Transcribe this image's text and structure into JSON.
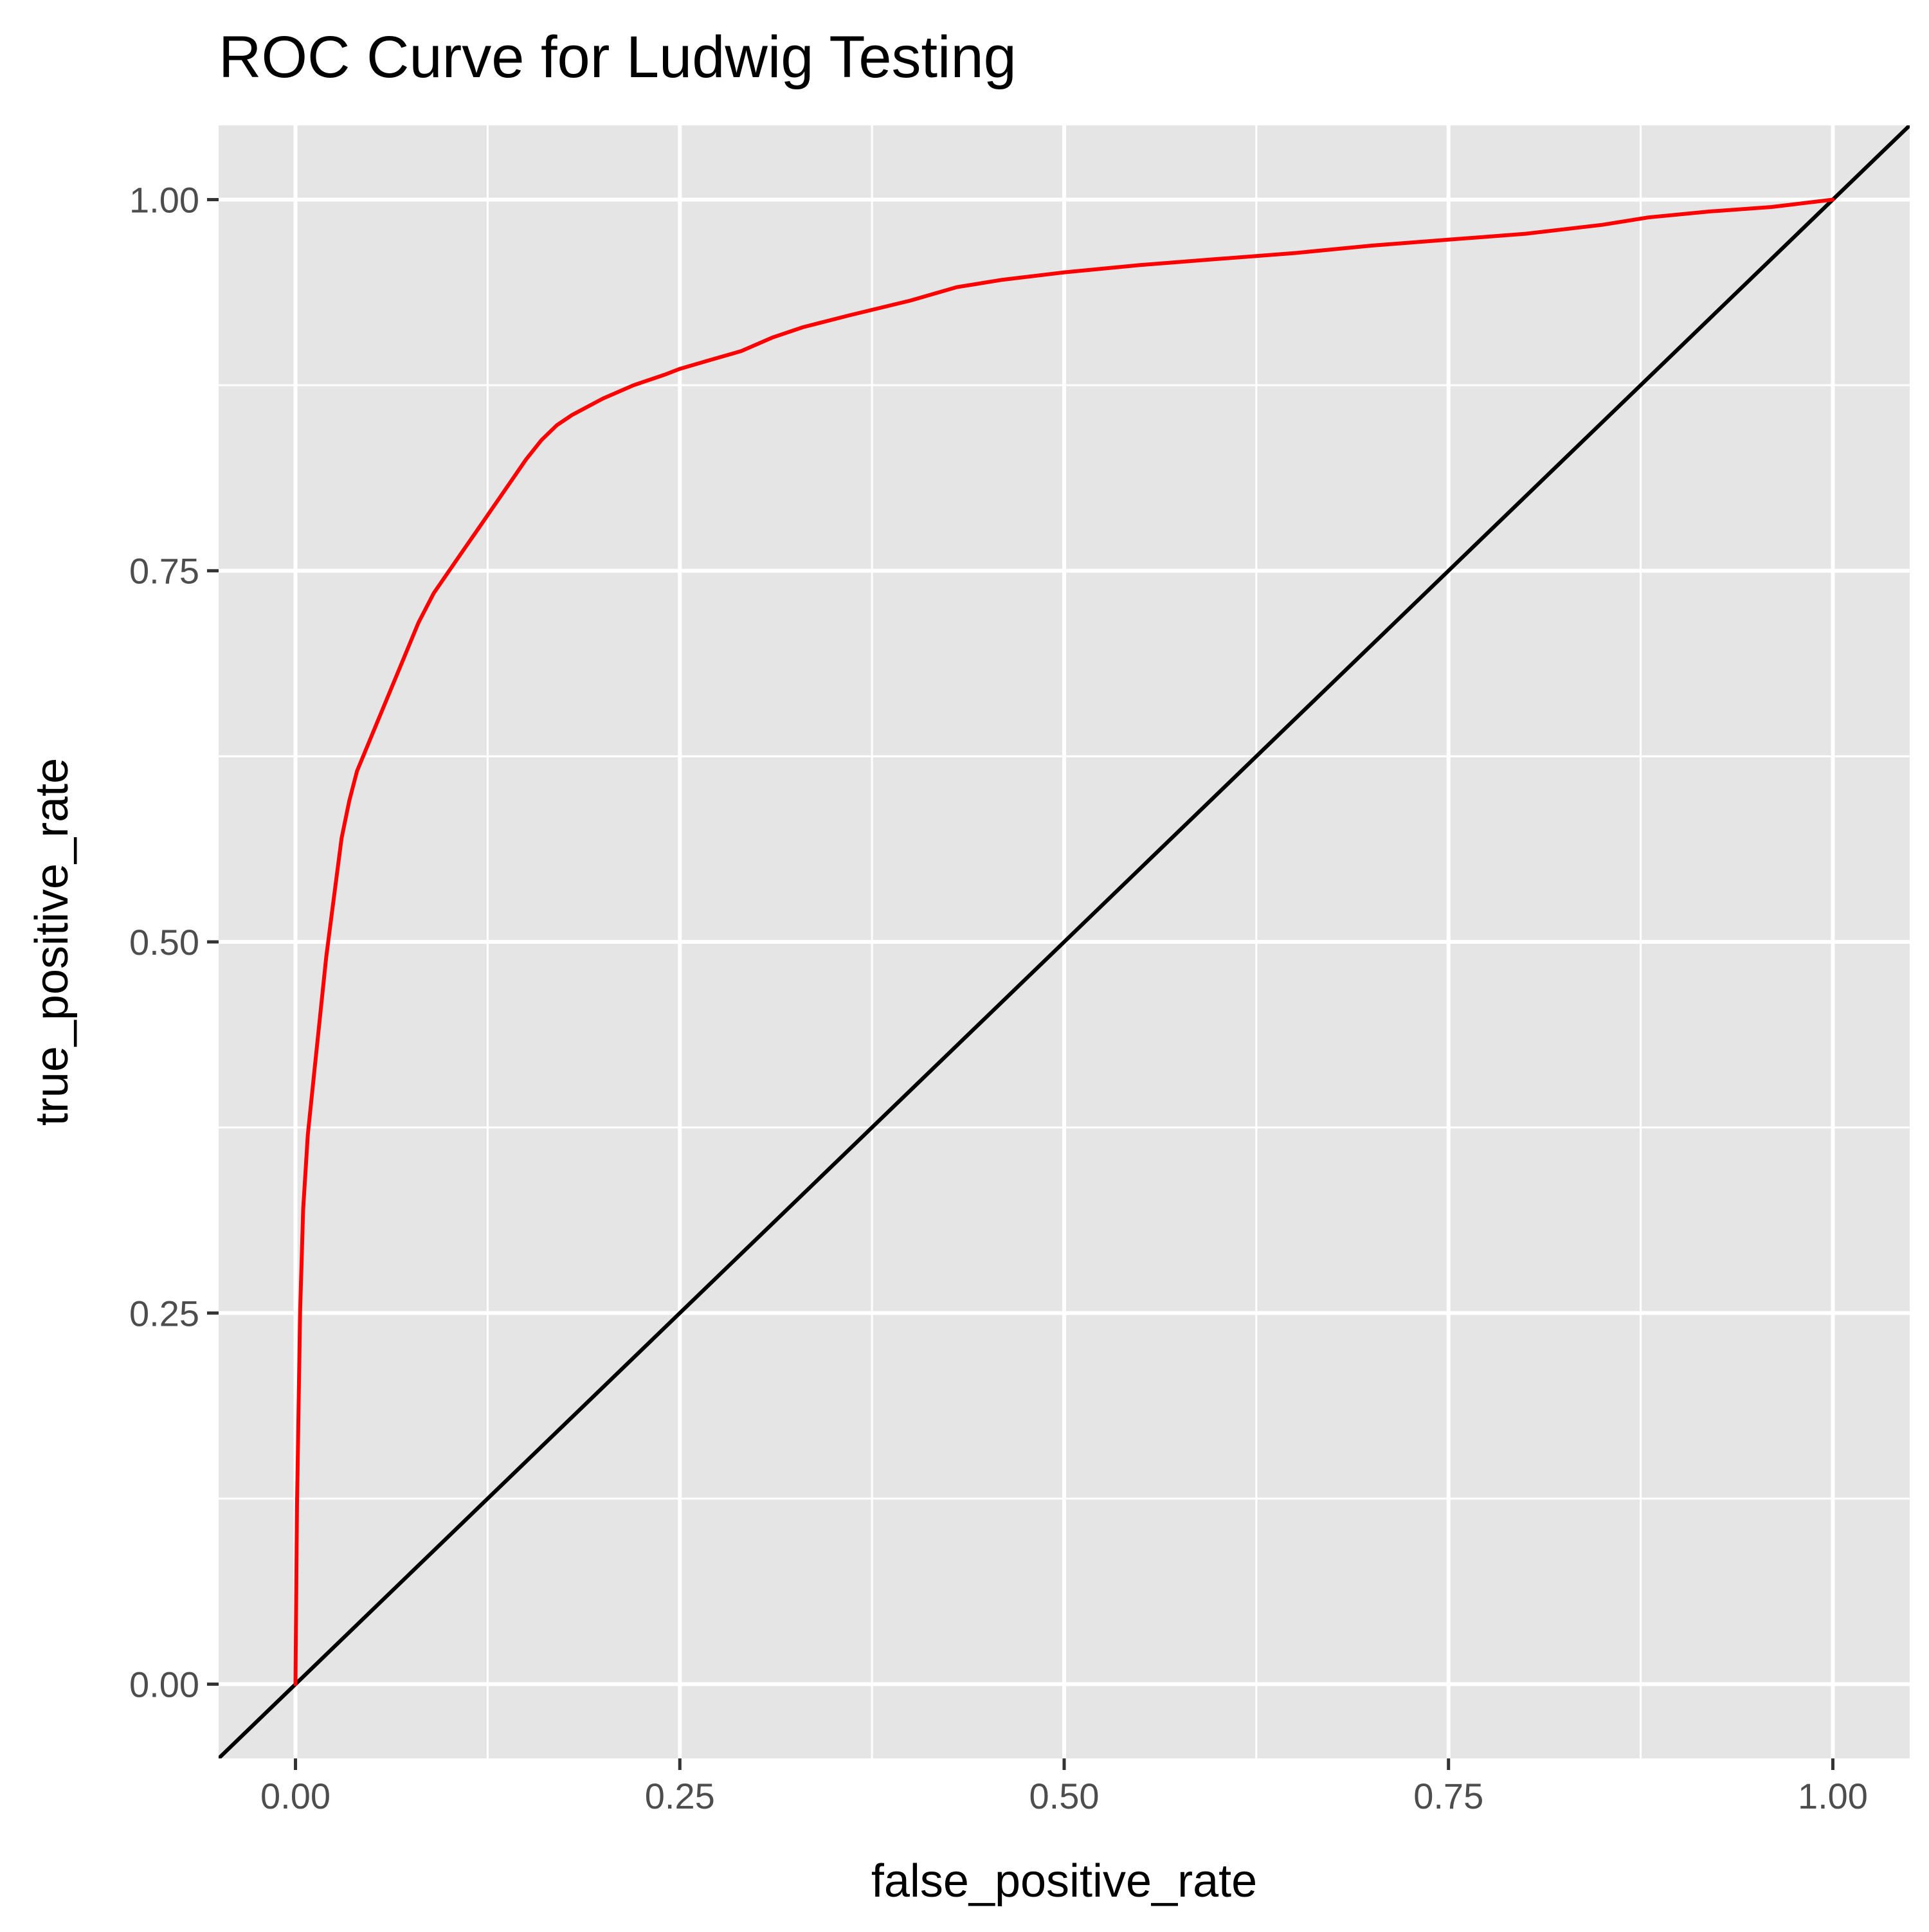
{
  "chart_data": {
    "type": "line",
    "title": "ROC Curve for Ludwig Testing",
    "xlabel": "false_positive_rate",
    "ylabel": "true_positive_rate",
    "xlim": [
      -0.05,
      1.05
    ],
    "ylim": [
      -0.05,
      1.05
    ],
    "x_ticks": [
      0,
      0.25,
      0.5,
      0.75,
      1
    ],
    "x_tick_labels": [
      "0.00",
      "0.25",
      "0.50",
      "0.75",
      "1.00"
    ],
    "y_ticks": [
      0,
      0.25,
      0.5,
      0.75,
      1
    ],
    "y_tick_labels": [
      "0.00",
      "0.25",
      "0.50",
      "0.75",
      "1.00"
    ],
    "grid": true,
    "legend": "none",
    "series": [
      {
        "color": "#ff0000",
        "x": [
          0,
          0.001,
          0.003,
          0.005,
          0.008,
          0.012,
          0.016,
          0.02,
          0.025,
          0.03,
          0.035,
          0.04,
          0.05,
          0.06,
          0.07,
          0.08,
          0.09,
          0.1,
          0.11,
          0.12,
          0.13,
          0.14,
          0.15,
          0.16,
          0.17,
          0.18,
          0.2,
          0.22,
          0.24,
          0.25,
          0.27,
          0.29,
          0.31,
          0.33,
          0.36,
          0.4,
          0.43,
          0.46,
          0.5,
          0.55,
          0.6,
          0.65,
          0.7,
          0.75,
          0.8,
          0.85,
          0.88,
          0.92,
          0.96,
          1.0
        ],
        "y": [
          0,
          0.12,
          0.25,
          0.32,
          0.37,
          0.41,
          0.45,
          0.49,
          0.53,
          0.57,
          0.595,
          0.615,
          0.64,
          0.665,
          0.69,
          0.715,
          0.735,
          0.75,
          0.765,
          0.78,
          0.795,
          0.81,
          0.825,
          0.838,
          0.848,
          0.855,
          0.866,
          0.875,
          0.882,
          0.886,
          0.892,
          0.898,
          0.907,
          0.914,
          0.922,
          0.932,
          0.941,
          0.946,
          0.951,
          0.956,
          0.96,
          0.964,
          0.969,
          0.973,
          0.977,
          0.983,
          0.988,
          0.992,
          0.995,
          1.0
        ]
      },
      {
        "color": "#000000",
        "x": [
          -0.05,
          1.05
        ],
        "y": [
          -0.05,
          1.05
        ]
      }
    ]
  }
}
